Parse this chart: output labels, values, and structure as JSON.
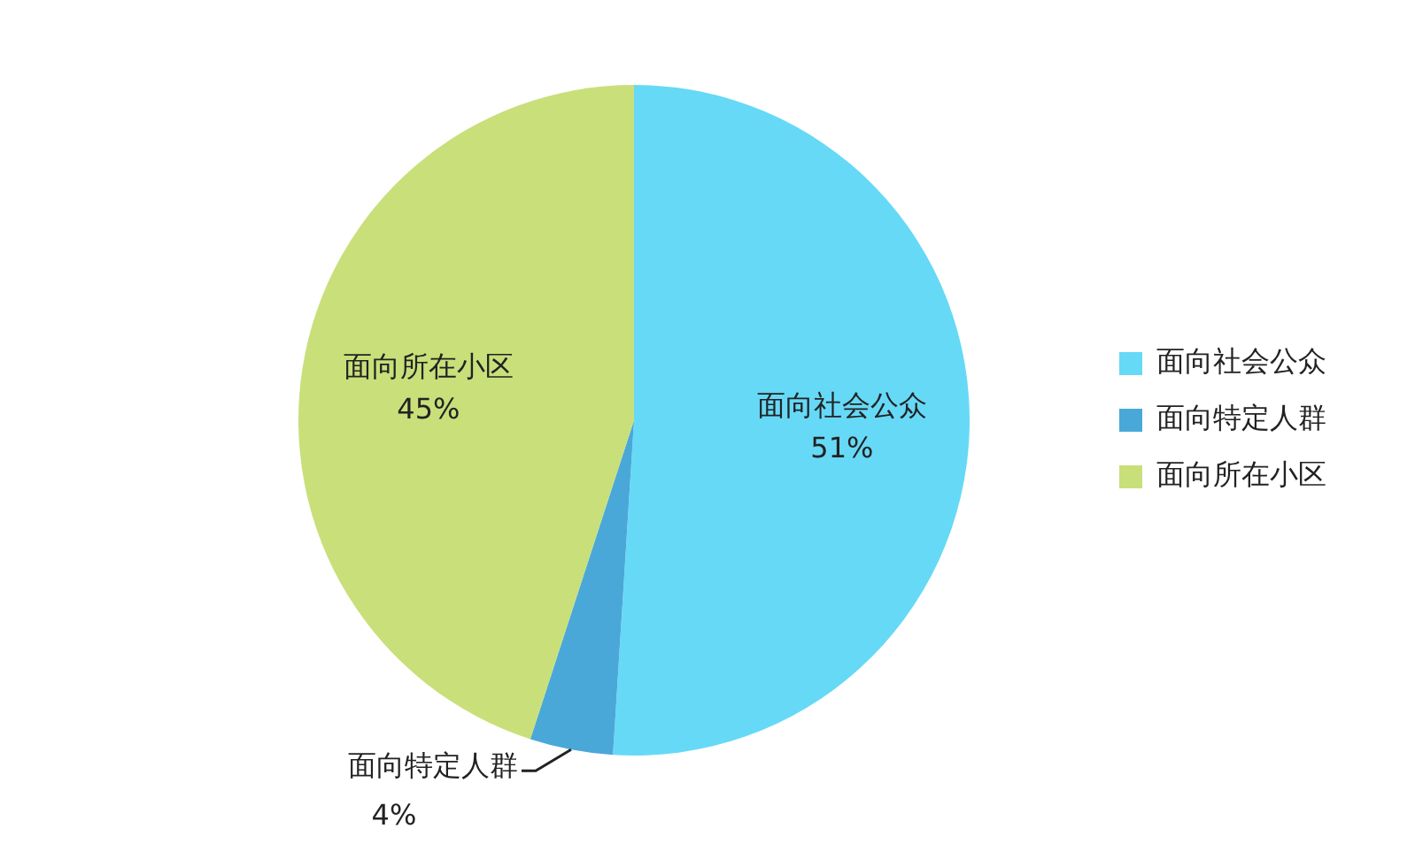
{
  "chart_data": {
    "type": "pie",
    "categories": [
      "面向社会公众",
      "面向特定人群",
      "面向所在小区"
    ],
    "values": [
      51,
      4,
      45
    ],
    "colors": [
      "#66d9f7",
      "#4aa8d8",
      "#c9df7a"
    ],
    "value_labels": [
      "51%",
      "4%",
      "45%"
    ],
    "legend": "right"
  }
}
